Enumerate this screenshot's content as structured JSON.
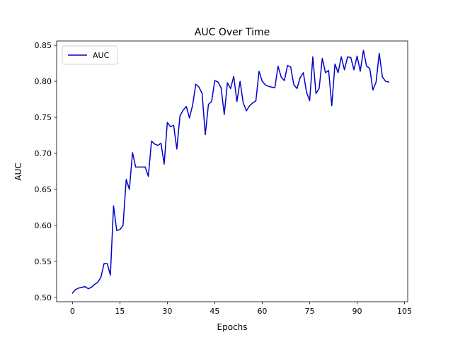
{
  "chart_data": {
    "type": "line",
    "title": "AUC Over Time",
    "xlabel": "Epochs",
    "ylabel": "AUC",
    "xlim": [
      -5,
      106
    ],
    "ylim": [
      0.494,
      0.856
    ],
    "xticks": [
      0,
      15,
      30,
      45,
      60,
      75,
      90,
      105
    ],
    "yticks": [
      0.5,
      0.55,
      0.6,
      0.65,
      0.7,
      0.75,
      0.8,
      0.85
    ],
    "grid": false,
    "legend": "top-left",
    "series": [
      {
        "name": "AUC",
        "color": "#0000cc",
        "x": [
          0,
          1,
          2,
          3,
          4,
          5,
          6,
          7,
          8,
          9,
          10,
          11,
          12,
          13,
          14,
          15,
          16,
          17,
          18,
          19,
          20,
          21,
          22,
          23,
          24,
          25,
          26,
          27,
          28,
          29,
          30,
          31,
          32,
          33,
          34,
          35,
          36,
          37,
          38,
          39,
          40,
          41,
          42,
          43,
          44,
          45,
          46,
          47,
          48,
          49,
          50,
          51,
          52,
          53,
          54,
          55,
          56,
          57,
          58,
          59,
          60,
          61,
          62,
          63,
          64,
          65,
          66,
          67,
          68,
          69,
          70,
          71,
          72,
          73,
          74,
          75,
          76,
          77,
          78,
          79,
          80,
          81,
          82,
          83,
          84,
          85,
          86,
          87,
          88,
          89,
          90,
          91,
          92,
          93,
          94,
          95,
          96,
          97,
          98,
          99,
          100
        ],
        "values": [
          0.506,
          0.511,
          0.513,
          0.514,
          0.515,
          0.512,
          0.514,
          0.518,
          0.521,
          0.528,
          0.547,
          0.547,
          0.531,
          0.627,
          0.593,
          0.594,
          0.6,
          0.664,
          0.65,
          0.701,
          0.681,
          0.681,
          0.681,
          0.681,
          0.668,
          0.717,
          0.713,
          0.711,
          0.714,
          0.685,
          0.743,
          0.737,
          0.739,
          0.706,
          0.752,
          0.76,
          0.765,
          0.749,
          0.767,
          0.796,
          0.792,
          0.783,
          0.726,
          0.768,
          0.772,
          0.801,
          0.799,
          0.791,
          0.754,
          0.798,
          0.79,
          0.807,
          0.772,
          0.8,
          0.77,
          0.759,
          0.766,
          0.77,
          0.773,
          0.814,
          0.8,
          0.795,
          0.793,
          0.792,
          0.791,
          0.821,
          0.806,
          0.801,
          0.822,
          0.82,
          0.795,
          0.79,
          0.805,
          0.812,
          0.785,
          0.773,
          0.834,
          0.783,
          0.79,
          0.832,
          0.812,
          0.815,
          0.766,
          0.824,
          0.812,
          0.834,
          0.816,
          0.834,
          0.833,
          0.816,
          0.835,
          0.814,
          0.843,
          0.821,
          0.818,
          0.788,
          0.799,
          0.839,
          0.806,
          0.8,
          0.799
        ]
      }
    ]
  }
}
